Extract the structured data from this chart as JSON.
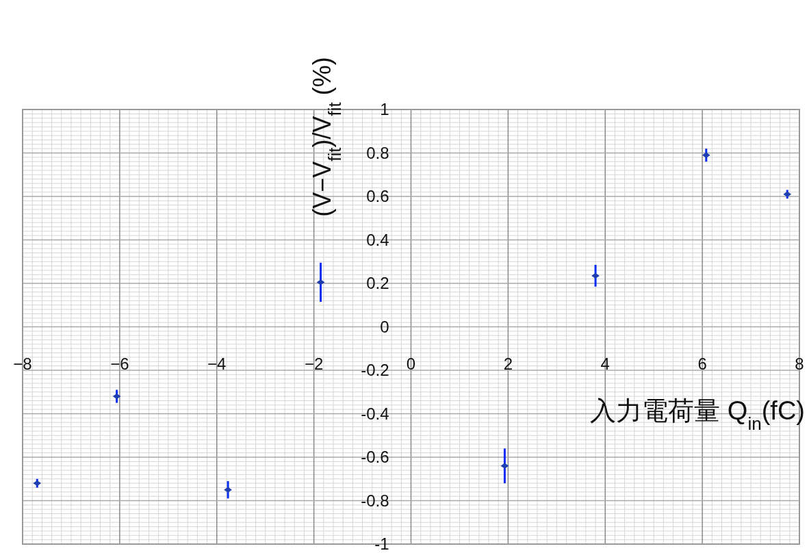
{
  "chart_data": {
    "type": "scatter",
    "xlabel": "入力電荷量 Q$_{in}$(fC)",
    "ylabel": "(V−V$_{fit}$)/V$_{fit}$ (%)",
    "x": [
      -7.7,
      -6.06,
      -3.77,
      -1.86,
      1.93,
      3.8,
      6.08,
      7.75
    ],
    "series": [
      {
        "color": "#1f3fb0",
        "values": [
          -0.72,
          -0.32,
          -0.75,
          0.205,
          -0.64,
          0.235,
          0.79,
          0.61
        ],
        "errors": [
          0.02,
          0.03,
          0.04,
          0.09,
          0.08,
          0.05,
          0.03,
          0.02
        ]
      }
    ],
    "xlim": [
      -8,
      8
    ],
    "xticks": [
      {
        "value": -8,
        "label": "−8"
      },
      {
        "value": -6,
        "label": "−6"
      },
      {
        "value": -4,
        "label": "−4"
      },
      {
        "value": -2,
        "label": "−2"
      },
      0,
      2,
      4,
      6,
      8
    ],
    "ylim": [
      -1,
      1
    ],
    "yticks": [
      1,
      0.8,
      0.6,
      0.4,
      0.2,
      0,
      -0.2,
      -0.4,
      -0.6,
      -0.8,
      -1
    ],
    "grid": true,
    "marker": "diamond"
  }
}
